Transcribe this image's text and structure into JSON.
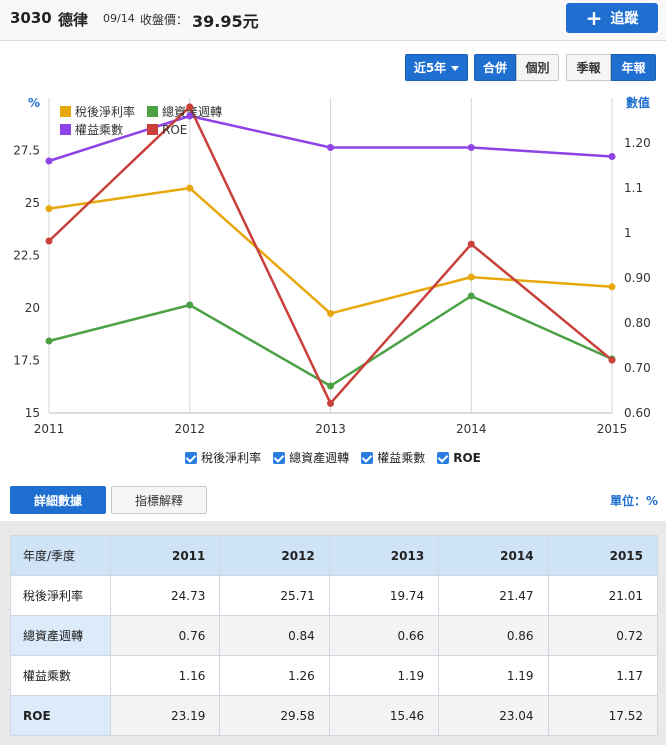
{
  "header": {
    "code": "3030",
    "name": "德律",
    "date": "09/14",
    "close_label": "收盤價：",
    "close_price": "39.95元",
    "track_button": "追蹤"
  },
  "controls": {
    "period": "近5年",
    "consolidated": "合併",
    "individual": "個別",
    "quarterly": "季報",
    "annual": "年報"
  },
  "colors": {
    "accent": "#1f6fd0",
    "net_margin": "#e8a80c",
    "asset_turnover": "#4ca145",
    "equity_multiplier": "#8e43e7",
    "roe": "#c9403a"
  },
  "chart_data": {
    "type": "line",
    "x": [
      "2011",
      "2012",
      "2013",
      "2014",
      "2015"
    ],
    "left_axis": {
      "label": "%",
      "ticks": [
        "15",
        "17.5",
        "20",
        "22.5",
        "25",
        "27.5"
      ],
      "range": [
        15,
        30
      ]
    },
    "right_axis": {
      "label": "數值",
      "ticks": [
        "0.60",
        "0.70",
        "0.80",
        "0.90",
        "1",
        "1.1",
        "1.20"
      ],
      "range": [
        0.6,
        1.3
      ]
    },
    "series": [
      {
        "name": "稅後淨利率",
        "axis": "left",
        "values": [
          24.73,
          25.71,
          19.74,
          21.47,
          21.01
        ]
      },
      {
        "name": "總資產週轉",
        "axis": "right",
        "values": [
          0.76,
          0.84,
          0.66,
          0.86,
          0.72
        ]
      },
      {
        "name": "權益乘數",
        "axis": "right",
        "values": [
          1.16,
          1.26,
          1.19,
          1.19,
          1.17
        ]
      },
      {
        "name": "ROE",
        "axis": "left",
        "values": [
          23.19,
          29.58,
          15.46,
          23.04,
          17.52
        ]
      }
    ],
    "grid": "vertical",
    "legend_position": "top-left"
  },
  "toggles": [
    "稅後淨利率",
    "總資產週轉",
    "權益乘數",
    "ROE"
  ],
  "tabs": {
    "detail": "詳細數據",
    "explain": "指標解釋"
  },
  "unit": "單位：%",
  "table": {
    "corner": "年度/季度",
    "years": [
      "2011",
      "2012",
      "2013",
      "2014",
      "2015"
    ],
    "rows": [
      {
        "label": "稅後淨利率",
        "values": [
          "24.73",
          "25.71",
          "19.74",
          "21.47",
          "21.01"
        ]
      },
      {
        "label": "總資產週轉",
        "values": [
          "0.76",
          "0.84",
          "0.66",
          "0.86",
          "0.72"
        ]
      },
      {
        "label": "權益乘數",
        "values": [
          "1.16",
          "1.26",
          "1.19",
          "1.19",
          "1.17"
        ]
      },
      {
        "label": "ROE",
        "values": [
          "23.19",
          "29.58",
          "15.46",
          "23.04",
          "17.52"
        ]
      }
    ]
  }
}
